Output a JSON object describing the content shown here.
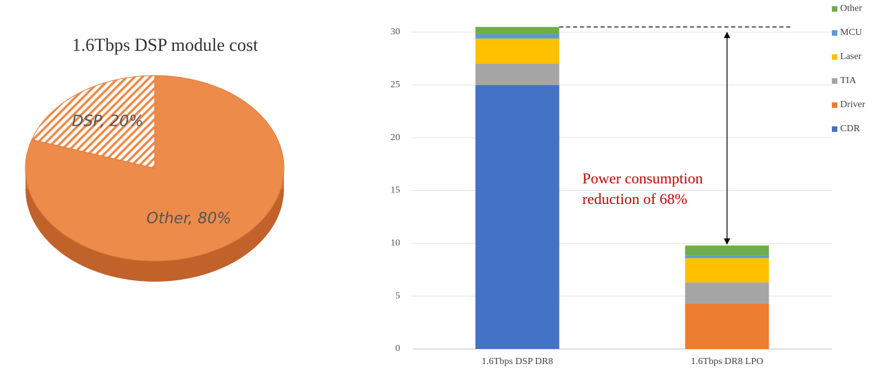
{
  "chart_data": [
    {
      "type": "pie",
      "title": "1.6Tbps DSP module cost",
      "categories": [
        "DSP",
        "Other"
      ],
      "values": [
        20,
        80
      ],
      "value_labels": [
        "DSP, 20%",
        "Other, 80%"
      ],
      "colors": [
        "#ed8b4a",
        "#ed8b4a"
      ],
      "hatched": [
        true,
        false
      ]
    },
    {
      "type": "stacked_bar",
      "categories": [
        "1.6Tbps DSP DR8",
        "1.6Tbps DR8 LPO"
      ],
      "series": [
        {
          "name": "CDR",
          "color": "#4472c4",
          "values": [
            25,
            0
          ]
        },
        {
          "name": "Driver",
          "color": "#ed7d31",
          "values": [
            0,
            4.3
          ]
        },
        {
          "name": "TIA",
          "color": "#a5a5a5",
          "values": [
            2,
            2
          ]
        },
        {
          "name": "Laser",
          "color": "#ffc000",
          "values": [
            2.4,
            2.3
          ]
        },
        {
          "name": "MCU",
          "color": "#5b9bd5",
          "values": [
            0.4,
            0.3
          ]
        },
        {
          "name": "Other",
          "color": "#70ad47",
          "values": [
            0.7,
            0.9
          ]
        }
      ],
      "ylim": [
        0,
        32
      ],
      "yticks": [
        0,
        5,
        10,
        15,
        20,
        25,
        30
      ],
      "grid": true,
      "legend": "right",
      "annotation_lines": [
        "Power consumption",
        "reduction of 68%"
      ]
    }
  ]
}
